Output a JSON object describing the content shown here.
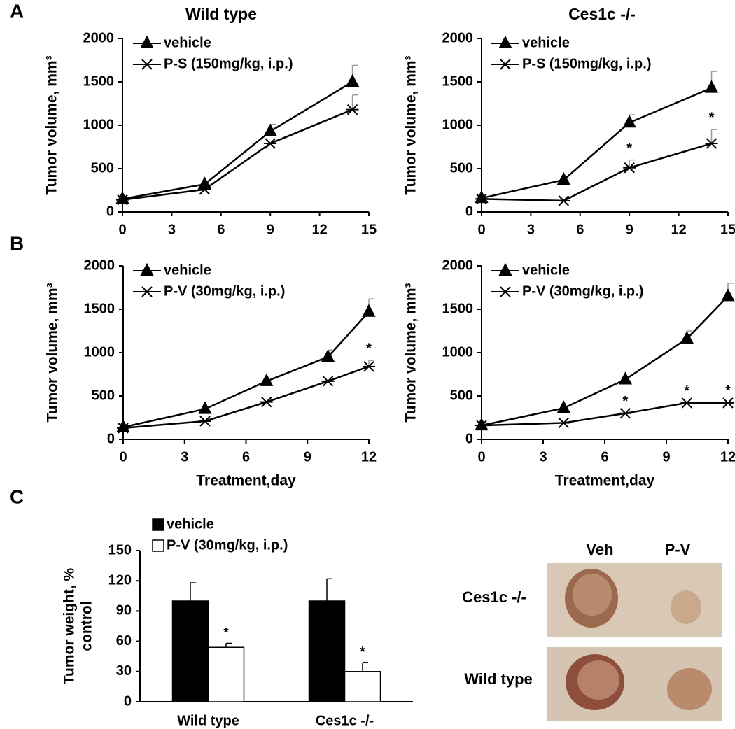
{
  "panels": [
    "A",
    "B",
    "C"
  ],
  "chart_data": [
    {
      "type": "line",
      "title": "Wild type",
      "ylabel": [
        "Tumor volume, mm³"
      ],
      "x": [
        0,
        5,
        9,
        14
      ],
      "xlim": [
        0,
        15
      ],
      "xticks": [
        0,
        3,
        6,
        9,
        12,
        15
      ],
      "ylim": [
        0,
        2000
      ],
      "yticks": [
        0,
        500,
        1000,
        1500,
        2000
      ],
      "series": [
        {
          "name": "vehicle",
          "color": "#000000",
          "marker": "triangle",
          "values": [
            150,
            320,
            930,
            1500
          ],
          "errors": [
            null,
            null,
            80,
            190
          ]
        },
        {
          "name": "P-S (150mg/kg, i.p.)",
          "color": "#000000",
          "marker": "star",
          "values": [
            140,
            260,
            790,
            1180
          ],
          "errors": [
            null,
            null,
            null,
            170
          ]
        }
      ]
    },
    {
      "type": "line",
      "title": "Ces1c -/-",
      "ylabel": [
        "Tumor volume, mm³"
      ],
      "x": [
        0,
        5,
        9,
        14
      ],
      "xlim": [
        0,
        15
      ],
      "xticks": [
        0,
        3,
        6,
        9,
        12,
        15
      ],
      "ylim": [
        0,
        2000
      ],
      "yticks": [
        0,
        500,
        1000,
        1500,
        2000
      ],
      "series": [
        {
          "name": "vehicle",
          "color": "#000000",
          "marker": "triangle",
          "values": [
            160,
            370,
            1030,
            1430
          ],
          "errors": [
            null,
            null,
            90,
            190
          ]
        },
        {
          "name": "P-S (150mg/kg, i.p.)",
          "color": "#000000",
          "marker": "star",
          "values": [
            150,
            130,
            510,
            790
          ],
          "errors": [
            null,
            null,
            90,
            160
          ],
          "annotations": [
            null,
            null,
            "*",
            "*"
          ]
        }
      ]
    },
    {
      "type": "line",
      "ylabel": [
        "Tumor volume, mm³"
      ],
      "xlabel": "Treatment,day",
      "x": [
        0,
        4,
        7,
        10,
        12
      ],
      "xlim": [
        0,
        12
      ],
      "xticks": [
        0,
        3,
        6,
        9,
        12
      ],
      "ylim": [
        0,
        2000
      ],
      "yticks": [
        0,
        500,
        1000,
        1500,
        2000
      ],
      "series": [
        {
          "name": "vehicle",
          "color": "#000000",
          "marker": "triangle",
          "values": [
            140,
            350,
            670,
            950,
            1470
          ],
          "errors": [
            null,
            null,
            null,
            80,
            150
          ]
        },
        {
          "name": "P-V (30mg/kg, i.p.)",
          "color": "#000000",
          "marker": "star",
          "values": [
            130,
            210,
            430,
            670,
            840
          ],
          "errors": [
            null,
            null,
            null,
            null,
            70
          ],
          "annotations": [
            null,
            null,
            null,
            null,
            "*"
          ]
        }
      ]
    },
    {
      "type": "line",
      "ylabel": [
        "Tumor volume, mm³"
      ],
      "xlabel": "Treatment,day",
      "x": [
        0,
        4,
        7,
        10,
        12
      ],
      "xlim": [
        0,
        12
      ],
      "xticks": [
        0,
        3,
        6,
        9,
        12
      ],
      "ylim": [
        0,
        2000
      ],
      "yticks": [
        0,
        500,
        1000,
        1500,
        2000
      ],
      "series": [
        {
          "name": "vehicle",
          "color": "#000000",
          "marker": "triangle",
          "values": [
            160,
            360,
            690,
            1160,
            1650
          ],
          "errors": [
            null,
            null,
            null,
            90,
            150
          ]
        },
        {
          "name": "P-V (30mg/kg, i.p.)",
          "color": "#000000",
          "marker": "star",
          "values": [
            160,
            190,
            300,
            420,
            420
          ],
          "errors": [
            null,
            null,
            null,
            null,
            null
          ],
          "annotations": [
            null,
            null,
            "*",
            "*",
            "*"
          ]
        }
      ]
    },
    {
      "type": "bar",
      "ylabel": [
        "Tumor weight, %",
        "control"
      ],
      "categories": [
        "Wild type",
        "Ces1c -/-"
      ],
      "ylim": [
        0,
        150
      ],
      "yticks": [
        0,
        30,
        60,
        90,
        120,
        150
      ],
      "series": [
        {
          "name": "vehicle",
          "color": "#000000",
          "values": [
            100,
            100
          ],
          "errors": [
            18,
            22
          ]
        },
        {
          "name": "P-V (30mg/kg, i.p.)",
          "color": "#ffffff",
          "values": [
            54,
            30
          ],
          "errors": [
            4,
            9
          ],
          "annotations": [
            "*",
            "*"
          ]
        }
      ]
    }
  ],
  "photo": {
    "columns": [
      "Veh",
      "P-V"
    ],
    "rows": [
      "Ces1c -/-",
      "Wild type"
    ]
  }
}
